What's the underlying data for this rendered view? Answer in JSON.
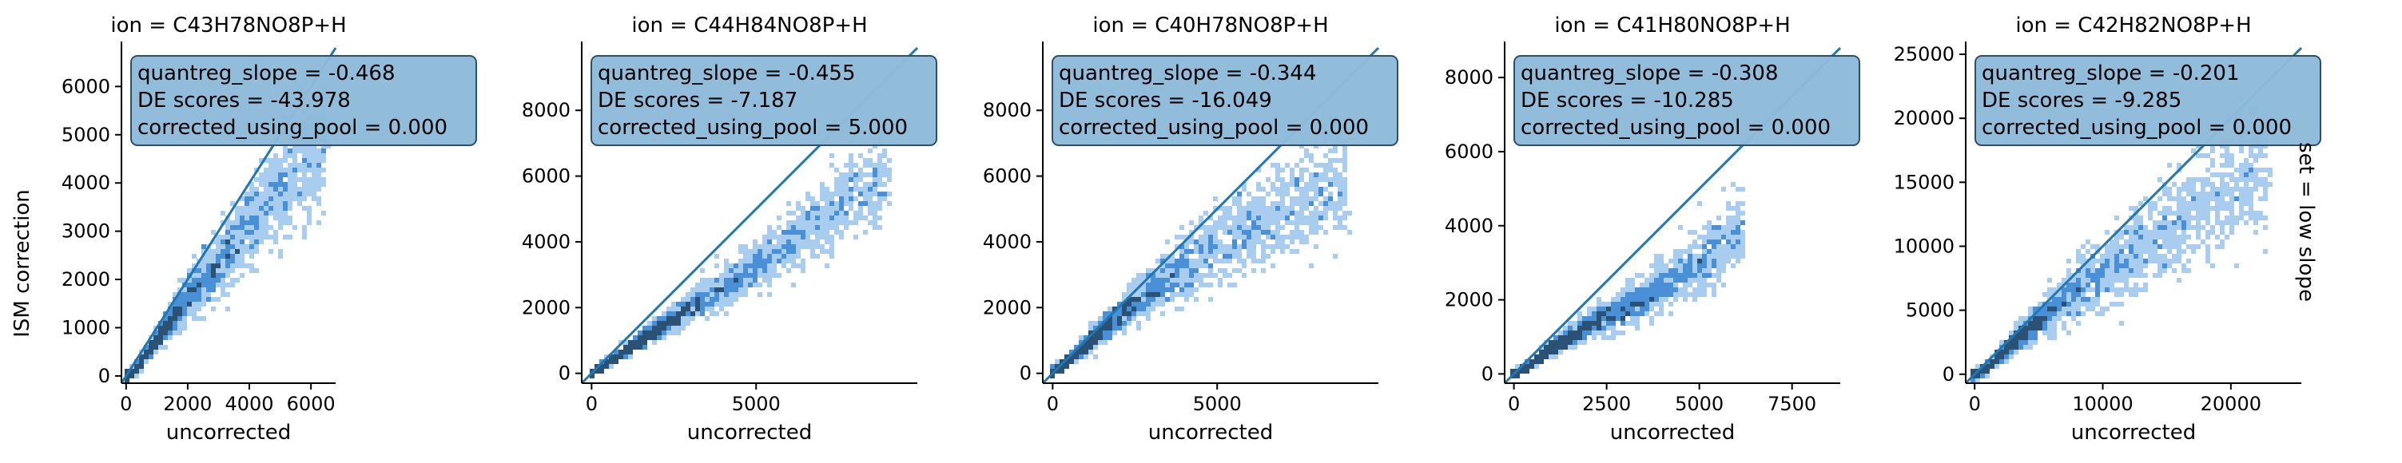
{
  "figure": {
    "ylabel": "ISM correction",
    "row_label": "set = low slope"
  },
  "colors": {
    "line": "#1f77b4",
    "box_fill": "#8fbbd9",
    "box_edge": "#2d4f6b",
    "hist_light": "#a8cdef",
    "hist_mid": "#4a90d6",
    "hist_dark": "#2b5275"
  },
  "chart_data": [
    {
      "type": "scatter",
      "title": "ion = C43H78NO8P+H",
      "xlabel": "uncorrected",
      "ylabel": "ISM correction",
      "xlim": [
        -150,
        6800
      ],
      "ylim": [
        -150,
        6800
      ],
      "xticks": [
        0,
        2000,
        4000,
        6000
      ],
      "yticks": [
        0,
        1000,
        2000,
        3000,
        4000,
        5000,
        6000
      ],
      "annotation": [
        "quantreg_slope = -0.468",
        "DE scores = -43.978",
        "corrected_using_pool = 0.000"
      ],
      "diagonal": [
        [
          -150,
          -150
        ],
        [
          6800,
          6800
        ]
      ],
      "density_spine": [
        [
          300,
          120
        ],
        [
          1000,
          750
        ],
        [
          1700,
          1400
        ],
        [
          2700,
          2100
        ],
        [
          3600,
          2800
        ],
        [
          4500,
          3500
        ],
        [
          5600,
          4300
        ],
        [
          6500,
          4700
        ]
      ],
      "spread": 0.13,
      "grid": false
    },
    {
      "type": "scatter",
      "title": "ion = C44H84NO8P+H",
      "xlabel": "uncorrected",
      "ylabel": "",
      "xlim": [
        -300,
        9900
      ],
      "ylim": [
        -300,
        9900
      ],
      "xticks": [
        0,
        5000
      ],
      "yticks": [
        0,
        2000,
        4000,
        6000,
        8000
      ],
      "annotation": [
        "quantreg_slope = -0.455",
        "DE scores = -7.187",
        "corrected_using_pool = 5.000"
      ],
      "diagonal": [
        [
          -300,
          -300
        ],
        [
          9900,
          9900
        ]
      ],
      "density_spine": [
        [
          300,
          200
        ],
        [
          1500,
          1000
        ],
        [
          3000,
          2000
        ],
        [
          4500,
          2900
        ],
        [
          6000,
          3900
        ],
        [
          7500,
          5200
        ],
        [
          9000,
          6000
        ]
      ],
      "spread": 0.11,
      "grid": false
    },
    {
      "type": "scatter",
      "title": "ion = C40H78NO8P+H",
      "xlabel": "uncorrected",
      "ylabel": "",
      "xlim": [
        -300,
        9900
      ],
      "ylim": [
        -300,
        9900
      ],
      "xticks": [
        0,
        5000
      ],
      "yticks": [
        0,
        2000,
        4000,
        6000,
        8000
      ],
      "annotation": [
        "quantreg_slope = -0.344",
        "DE scores = -16.049",
        "corrected_using_pool = 0.000"
      ],
      "diagonal": [
        [
          -300,
          -300
        ],
        [
          9900,
          9900
        ]
      ],
      "density_spine": [
        [
          500,
          400
        ],
        [
          1500,
          1300
        ],
        [
          2500,
          2100
        ],
        [
          3500,
          2900
        ],
        [
          5000,
          3900
        ],
        [
          7000,
          5000
        ],
        [
          9000,
          6000
        ]
      ],
      "spread": 0.14,
      "grid": false
    },
    {
      "type": "scatter",
      "title": "ion = C41H80NO8P+H",
      "xlabel": "uncorrected",
      "ylabel": "",
      "xlim": [
        -250,
        8800
      ],
      "ylim": [
        -250,
        8800
      ],
      "xticks": [
        0,
        2500,
        5000,
        7500
      ],
      "yticks": [
        0,
        2000,
        4000,
        6000,
        8000
      ],
      "annotation": [
        "quantreg_slope = -0.308",
        "DE scores = -10.285",
        "corrected_using_pool = 0.000"
      ],
      "diagonal": [
        [
          -250,
          -250
        ],
        [
          8800,
          8800
        ]
      ],
      "density_spine": [
        [
          300,
          150
        ],
        [
          1000,
          700
        ],
        [
          2000,
          1300
        ],
        [
          3000,
          1800
        ],
        [
          4200,
          2500
        ],
        [
          5500,
          3300
        ],
        [
          6200,
          4000
        ]
      ],
      "spread": 0.13,
      "grid": false
    },
    {
      "type": "scatter",
      "title": "ion = C42H82NO8P+H",
      "xlabel": "uncorrected",
      "ylabel": "",
      "xlim": [
        -700,
        25500
      ],
      "ylim": [
        -700,
        25500
      ],
      "xticks": [
        0,
        10000,
        20000
      ],
      "yticks": [
        0,
        5000,
        10000,
        15000,
        20000,
        25000
      ],
      "annotation": [
        "quantreg_slope = -0.201",
        "DE scores = -9.285",
        "corrected_using_pool = 0.000"
      ],
      "diagonal": [
        [
          -700,
          -700
        ],
        [
          25500,
          25500
        ]
      ],
      "density_spine": [
        [
          1000,
          500
        ],
        [
          3000,
          2500
        ],
        [
          5000,
          4200
        ],
        [
          7000,
          5800
        ],
        [
          10000,
          7800
        ],
        [
          14000,
          10500
        ],
        [
          18000,
          13000
        ],
        [
          23000,
          16500
        ]
      ],
      "spread": 0.16,
      "grid": false
    }
  ]
}
